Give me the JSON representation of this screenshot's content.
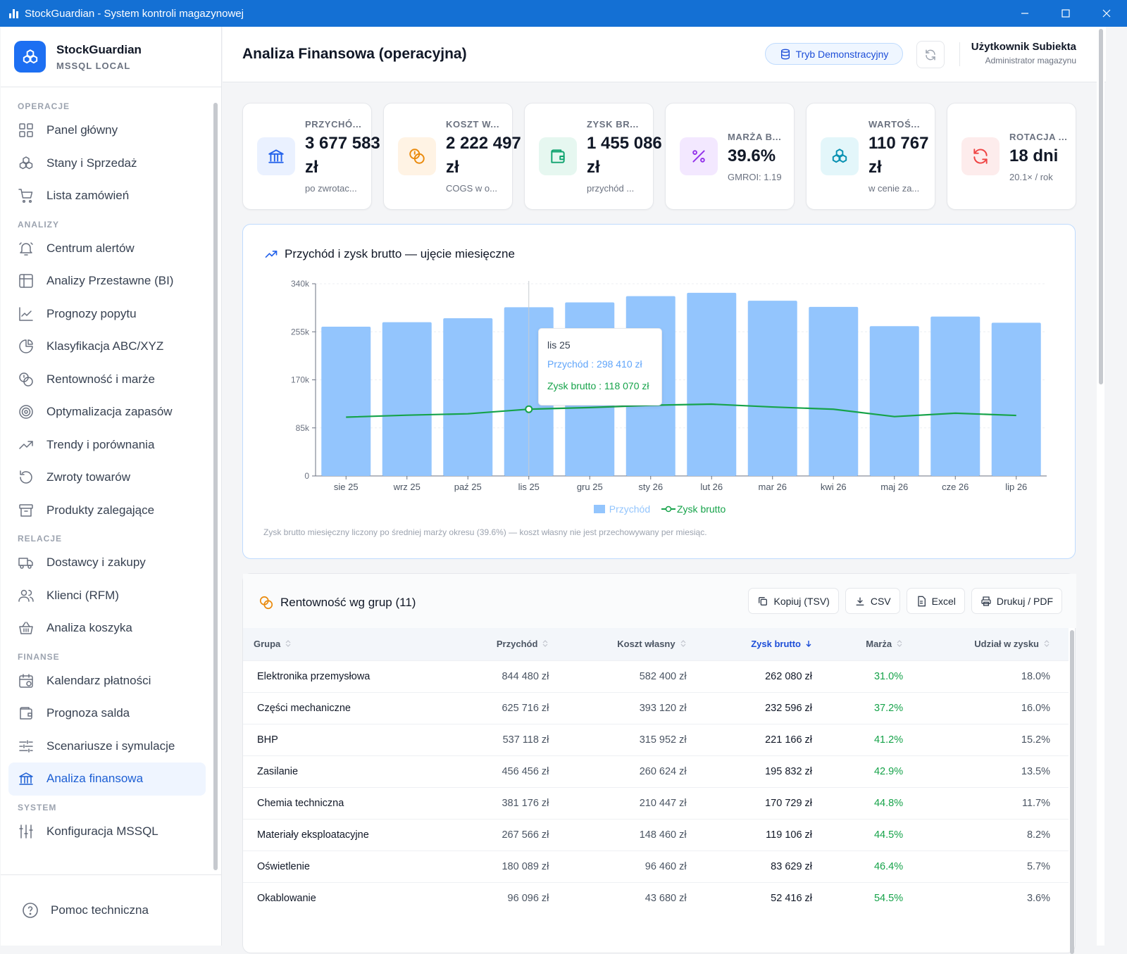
{
  "window": {
    "title": "StockGuardian - System kontroli magazynowej"
  },
  "brand": {
    "name": "StockGuardian",
    "subtitle": "MSSQL LOCAL"
  },
  "nav": {
    "sections": [
      {
        "label": "OPERACJE",
        "items": [
          {
            "label": "Panel główny",
            "icon": "grid"
          },
          {
            "label": "Stany i Sprzedaż",
            "icon": "boxes"
          },
          {
            "label": "Lista zamówień",
            "icon": "cart"
          }
        ]
      },
      {
        "label": "ANALIZY",
        "items": [
          {
            "label": "Centrum alertów",
            "icon": "bell"
          },
          {
            "label": "Analizy Przestawne (BI)",
            "icon": "table"
          },
          {
            "label": "Prognozy popytu",
            "icon": "line"
          },
          {
            "label": "Klasyfikacja ABC/XYZ",
            "icon": "pie"
          },
          {
            "label": "Rentowność i marże",
            "icon": "coins"
          },
          {
            "label": "Optymalizacja zapasów",
            "icon": "target"
          },
          {
            "label": "Trendy i porównania",
            "icon": "trend"
          },
          {
            "label": "Zwroty towarów",
            "icon": "return"
          },
          {
            "label": "Produkty zalegające",
            "icon": "archive"
          }
        ]
      },
      {
        "label": "RELACJE",
        "items": [
          {
            "label": "Dostawcy i zakupy",
            "icon": "truck"
          },
          {
            "label": "Klienci (RFM)",
            "icon": "users"
          },
          {
            "label": "Analiza koszyka",
            "icon": "basket"
          }
        ]
      },
      {
        "label": "FINANSE",
        "items": [
          {
            "label": "Kalendarz płatności",
            "icon": "calendar"
          },
          {
            "label": "Prognoza salda",
            "icon": "wallet"
          },
          {
            "label": "Scenariusze i symulacje",
            "icon": "sliders"
          },
          {
            "label": "Analiza finansowa",
            "icon": "bank",
            "active": true
          }
        ]
      },
      {
        "label": "SYSTEM",
        "items": [
          {
            "label": "Konfiguracja MSSQL",
            "icon": "settings"
          }
        ]
      }
    ],
    "help": "Pomoc techniczna"
  },
  "header": {
    "title": "Analiza Finansowa (operacyjna)",
    "demo": "Tryb Demonstracyjny",
    "user_name": "Użytkownik Subiekta",
    "user_role": "Administrator magazynu"
  },
  "kpis": [
    {
      "label": "PRZYCHÓ...",
      "value": "3 677 583",
      "unit": "zł",
      "sub": "po zwrotac...",
      "color": "#2563eb",
      "bg": "#eaf1ff",
      "icon": "bank"
    },
    {
      "label": "KOSZT W...",
      "value": "2 222 497",
      "unit": "zł",
      "sub": "COGS w o...",
      "color": "#ea8a0c",
      "bg": "#fff3e4",
      "icon": "coins"
    },
    {
      "label": "ZYSK BR...",
      "value": "1 455 086",
      "unit": "zł",
      "sub": "przychód ...",
      "color": "#10a36f",
      "bg": "#e6f7f0",
      "icon": "wallet"
    },
    {
      "label": "MARŻA B...",
      "value": "39.6%",
      "unit": "",
      "sub": "GMROI: 1.19",
      "color": "#9333ea",
      "bg": "#f3e8ff",
      "icon": "percent"
    },
    {
      "label": "WARTOŚ...",
      "value": "110 767",
      "unit": "zł",
      "sub": "w cenie za...",
      "color": "#0891b2",
      "bg": "#e3f6fa",
      "icon": "boxes"
    },
    {
      "label": "ROTACJA ...",
      "value": "18 dni",
      "unit": "",
      "sub": "20.1× / rok",
      "color": "#ef4444",
      "bg": "#fdecec",
      "icon": "refresh"
    }
  ],
  "chart": {
    "title": "Przychód i zysk brutto — ujęcie miesięczne",
    "note": "Zysk brutto miesięczny liczony po średniej marży okresu (39.6%) — koszt własny nie jest przechowywany per miesiąc.",
    "tooltip": {
      "title": "lis 25",
      "rev": "Przychód : 298 410 zł",
      "profit": "Zysk brutto : 118 070 zł"
    },
    "legend_rev": "Przychód",
    "legend_profit": "Zysk brutto"
  },
  "chart_data": {
    "type": "bar",
    "categories": [
      "sie 25",
      "wrz 25",
      "paź 25",
      "lis 25",
      "gru 25",
      "sty 26",
      "lut 26",
      "mar 26",
      "kwi 26",
      "maj 26",
      "cze 26",
      "lip 26"
    ],
    "series": [
      {
        "name": "Przychód",
        "type": "bar",
        "color": "#93c5fd",
        "values": [
          264000,
          272000,
          279000,
          298410,
          307000,
          318000,
          324000,
          310000,
          299000,
          265000,
          282000,
          271000
        ]
      },
      {
        "name": "Zysk brutto",
        "type": "line",
        "color": "#16a34a",
        "values": [
          104000,
          107500,
          110000,
          118070,
          121000,
          125000,
          127000,
          122000,
          118000,
          105000,
          111000,
          107000
        ]
      }
    ],
    "yticks": [
      "0",
      "85k",
      "170k",
      "255k",
      "340k"
    ],
    "ylim": [
      0,
      340000
    ],
    "highlight": "lis 25"
  },
  "table": {
    "title": "Rentowność wg grup (11)",
    "buttons": {
      "copy": "Kopiuj (TSV)",
      "csv": "CSV",
      "excel": "Excel",
      "print": "Drukuj / PDF"
    },
    "columns": [
      "Grupa",
      "Przychód",
      "Koszt własny",
      "Zysk brutto",
      "Marża",
      "Udział w zysku"
    ],
    "rows": [
      [
        "Elektronika przemysłowa",
        "844 480 zł",
        "582 400 zł",
        "262 080 zł",
        "31.0%",
        "18.0%"
      ],
      [
        "Części mechaniczne",
        "625 716 zł",
        "393 120 zł",
        "232 596 zł",
        "37.2%",
        "16.0%"
      ],
      [
        "BHP",
        "537 118 zł",
        "315 952 zł",
        "221 166 zł",
        "41.2%",
        "15.2%"
      ],
      [
        "Zasilanie",
        "456 456 zł",
        "260 624 zł",
        "195 832 zł",
        "42.9%",
        "13.5%"
      ],
      [
        "Chemia techniczna",
        "381 176 zł",
        "210 447 zł",
        "170 729 zł",
        "44.8%",
        "11.7%"
      ],
      [
        "Materiały eksploatacyjne",
        "267 566 zł",
        "148 460 zł",
        "119 106 zł",
        "44.5%",
        "8.2%"
      ],
      [
        "Oświetlenie",
        "180 089 zł",
        "96 460 zł",
        "83 629 zł",
        "46.4%",
        "5.7%"
      ],
      [
        "Okablowanie",
        "96 096 zł",
        "43 680 zł",
        "52 416 zł",
        "54.5%",
        "3.6%"
      ]
    ]
  }
}
